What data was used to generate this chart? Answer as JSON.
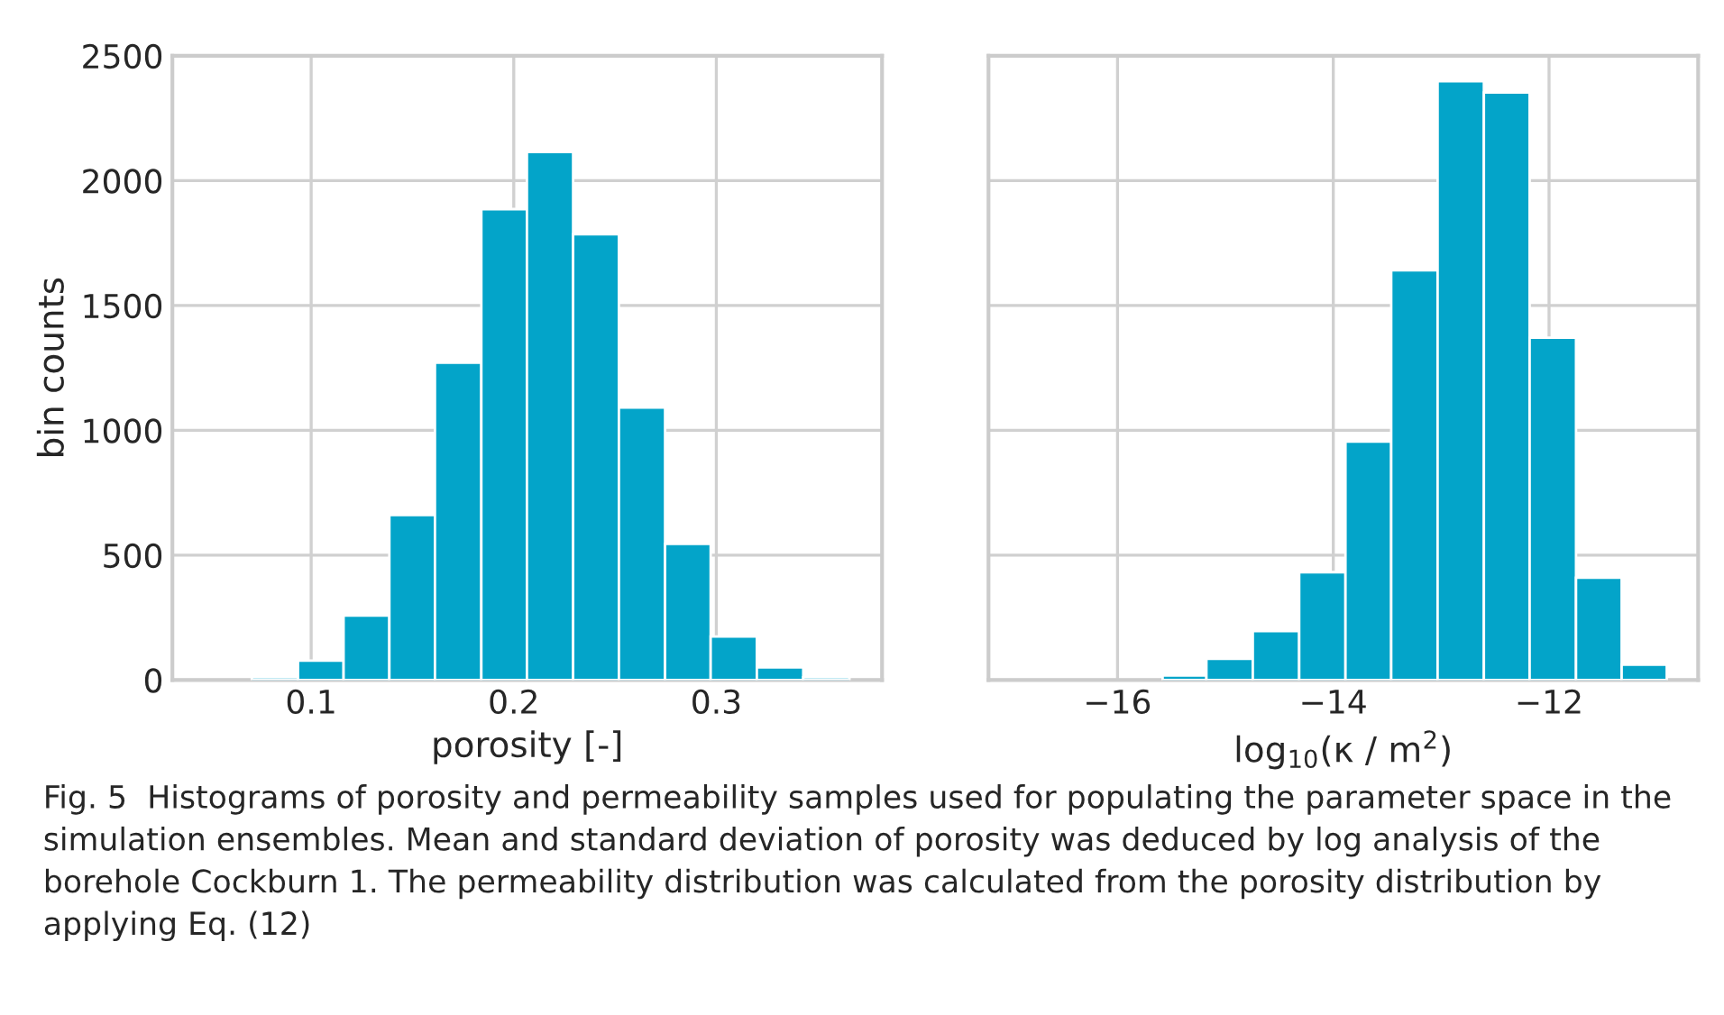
{
  "chart_data": [
    {
      "type": "histogram",
      "xlabel": "porosity [-]",
      "ylabel": "bin counts",
      "color": "#03a4c9",
      "bins": [
        0.0707,
        0.0935,
        0.116,
        0.1386,
        0.1611,
        0.184,
        0.2065,
        0.2293,
        0.2519,
        0.2747,
        0.2972,
        0.32,
        0.3429,
        0.3657
      ],
      "values": [
        11,
        78,
        258,
        661,
        1271,
        1886,
        2115,
        1785,
        1091,
        545,
        174,
        51,
        11
      ],
      "xlim": [
        0.0315,
        0.3818
      ],
      "xticks": [
        0.1,
        0.2,
        0.3
      ],
      "ylim": [
        0,
        2500
      ],
      "yticks": [
        0,
        500,
        1000,
        1500,
        2000,
        2500
      ],
      "grid": true
    },
    {
      "type": "histogram",
      "xlabel": "log$_{10}$(κ / m$^{2}$)",
      "color": "#03a4c9",
      "bins": [
        -15.582,
        -15.176,
        -14.746,
        -14.316,
        -13.887,
        -13.463,
        -13.033,
        -12.604,
        -12.18,
        -11.75,
        -11.327,
        -10.909
      ],
      "values": [
        18,
        85,
        196,
        432,
        955,
        1641,
        2398,
        2353,
        1371,
        410,
        62
      ],
      "xlim": [
        -17.196,
        -10.618
      ],
      "xticks": [
        {
          "value": -16,
          "label": "−16"
        },
        {
          "value": -14,
          "label": "−14"
        },
        {
          "value": -12,
          "label": "−12"
        }
      ],
      "ylim": [
        0,
        2500
      ],
      "yticks": [
        0,
        500,
        1000,
        1500,
        2000,
        2500
      ],
      "grid": true,
      "tick_labels": "x",
      "annotations": [
        "Fig. 5  Histograms of porosity and permeability samples used for populating the parameter space in the simulation ensembles. Mean and standard deviation of porosity was deduced by log analysis of the borehole Cockburn 1. The permeability distribution was calculated from the porosity distribution by applying Eq. (12)"
      ]
    }
  ]
}
